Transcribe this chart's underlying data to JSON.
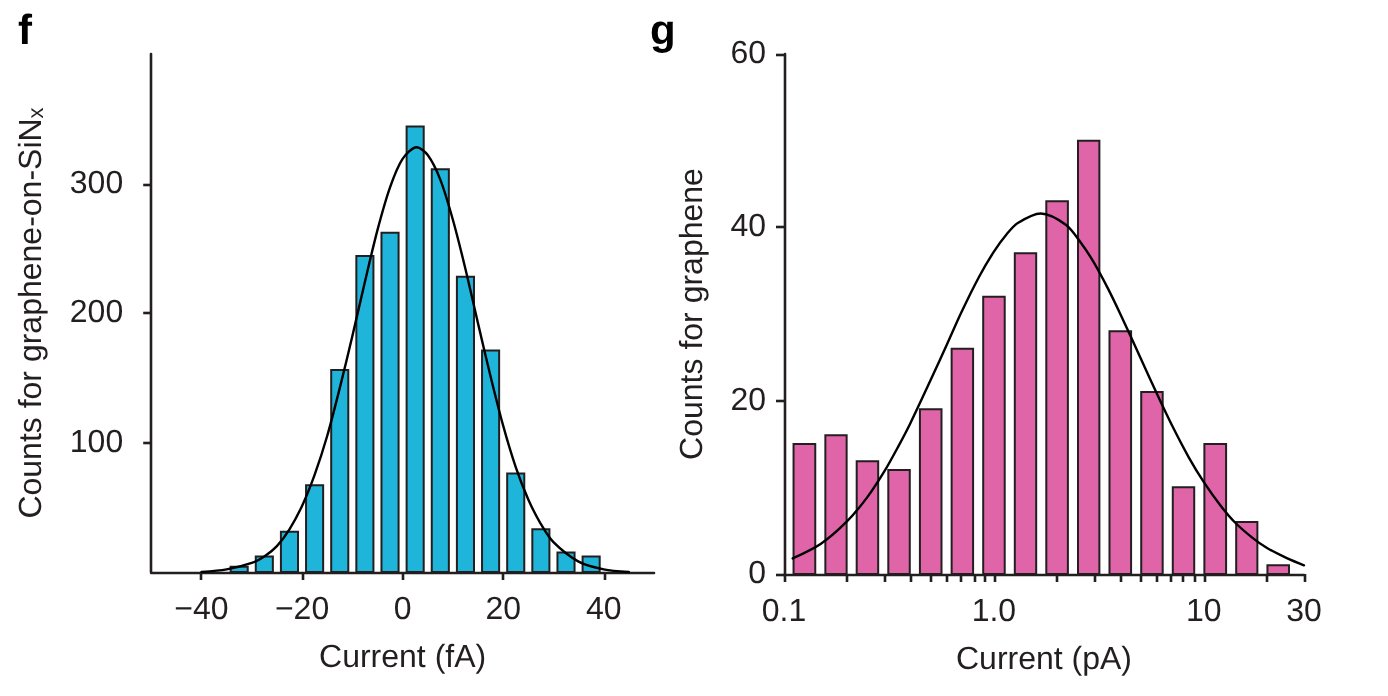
{
  "chart_data": [
    {
      "type": "histogram",
      "title": "f",
      "xlabel": "Current (fA)",
      "ylabel": "Counts for graphene-on-SiN$_{x}$",
      "bins": [
        -35,
        -30,
        -25,
        -20,
        -15,
        -10,
        -5,
        0,
        5,
        10,
        15,
        20,
        25,
        30,
        35,
        40
      ],
      "series": [
        {
          "values": [
            4,
            12,
            31,
            67,
            156,
            244,
            262,
            344,
            311,
            228,
            171,
            76,
            33,
            15,
            12
          ],
          "color": "#1fb5da"
        },
        {
          "type": "line",
          "color": "#000000",
          "x": [
            -40,
            -35,
            -30,
            -27.5,
            -25,
            -22.5,
            -20,
            -17.5,
            -15,
            -12.5,
            -10,
            -7.5,
            -5,
            -2.5,
            0,
            2.8,
            5,
            7.5,
            10,
            12.5,
            15,
            17.5,
            20,
            22.5,
            25,
            27.5,
            30,
            35,
            40,
            45
          ],
          "values": [
            0,
            2,
            7,
            12,
            20,
            33,
            51,
            75,
            105,
            142,
            182,
            224,
            264,
            297,
            319,
            328,
            322,
            303,
            272,
            234,
            192,
            151,
            113,
            81,
            56,
            37,
            23,
            8,
            2,
            0
          ]
        }
      ],
      "xlim": [
        -50,
        50
      ],
      "xticks": [
        {
          "value": -40,
          "label": "−40"
        },
        {
          "value": -20,
          "label": "−20"
        },
        0,
        20,
        40
      ],
      "ylim": [
        0,
        400
      ],
      "yticks": [
        100,
        200,
        300
      ]
    },
    {
      "type": "histogram",
      "title": "g",
      "xlabel": "Current (pA)",
      "ylabel": "Counts for graphene",
      "log": "x",
      "bins": [
        0.105,
        0.149,
        0.21,
        0.297,
        0.42,
        0.595,
        0.841,
        1.19,
        1.68,
        2.38,
        3.36,
        4.76,
        6.73,
        9.51,
        13.5,
        19.0,
        26.9
      ],
      "series": [
        {
          "values": [
            15,
            16,
            13,
            12,
            19,
            26,
            32,
            37,
            43,
            50,
            28,
            21,
            10,
            15,
            6,
            1
          ],
          "color": "#e064a8"
        },
        {
          "type": "line",
          "color": "#000000",
          "x": [
            0.11,
            0.15,
            0.2,
            0.25,
            0.3,
            0.35,
            0.4,
            0.5,
            0.6,
            0.7,
            0.85,
            1.0,
            1.15,
            1.3,
            1.67,
            2.2,
            2.6,
            3,
            3.5,
            4,
            5,
            6,
            7,
            8.5,
            10,
            12,
            14,
            17,
            20,
            25,
            30
          ],
          "values": [
            1.8,
            3.5,
            6.1,
            8.9,
            11.8,
            14.7,
            17.4,
            22.4,
            26.6,
            30.2,
            34.3,
            37.2,
            39.2,
            40.5,
            41.6,
            40.3,
            38.2,
            35.9,
            32.9,
            30,
            24.9,
            20.7,
            17.3,
            13.4,
            10.6,
            7.9,
            6,
            4.2,
            3,
            1.8,
            1
          ]
        }
      ],
      "xlim": [
        0.1,
        30
      ],
      "xticks": [
        0.1,
        {
          "value": 0.2,
          "label": null
        },
        {
          "value": 0.3,
          "label": null
        },
        {
          "value": 0.4,
          "label": null
        },
        {
          "value": 0.5,
          "label": null
        },
        {
          "value": 0.6,
          "label": null
        },
        {
          "value": 0.7,
          "label": null
        },
        {
          "value": 0.8,
          "label": null
        },
        {
          "value": 0.9,
          "label": null
        },
        {
          "value": 1,
          "label": "1.0"
        },
        {
          "value": 2,
          "label": null
        },
        {
          "value": 3,
          "label": null
        },
        {
          "value": 4,
          "label": null
        },
        {
          "value": 5,
          "label": null
        },
        {
          "value": 6,
          "label": null
        },
        {
          "value": 7,
          "label": null
        },
        {
          "value": 8,
          "label": null
        },
        {
          "value": 9,
          "label": null
        },
        10,
        {
          "value": 20,
          "label": null
        },
        30
      ],
      "ylim": [
        0,
        60
      ],
      "yticks": [
        0,
        20,
        40,
        60
      ]
    }
  ]
}
